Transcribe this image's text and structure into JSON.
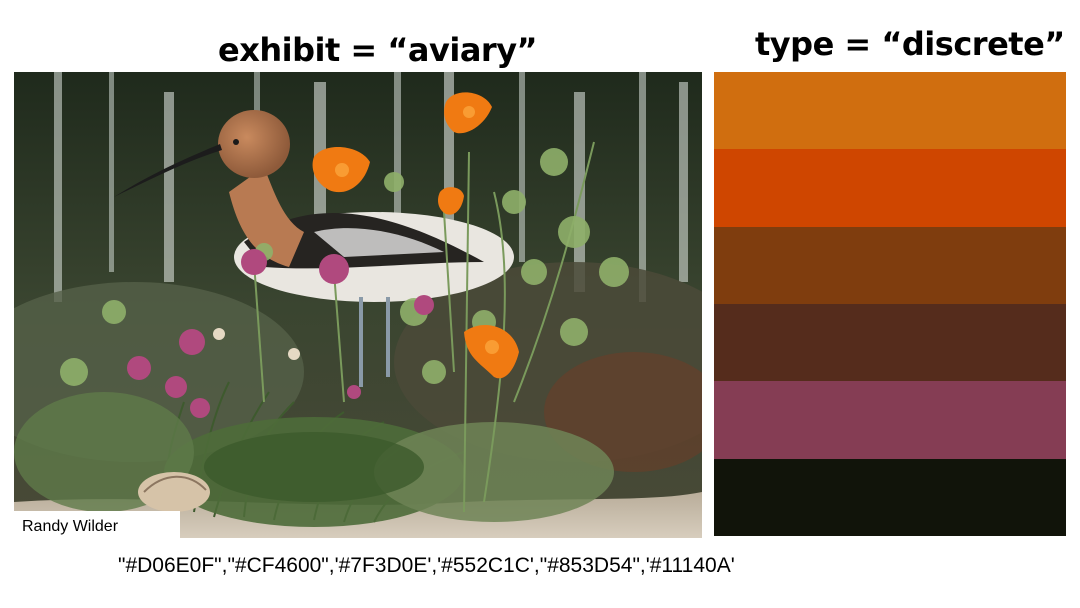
{
  "titles": {
    "left": "exhibit =  “aviary”",
    "right": "type = “discrete”"
  },
  "photo": {
    "credit": "Randy Wilder"
  },
  "palette": {
    "swatches": [
      {
        "color": "#D06E0F"
      },
      {
        "color": "#CF4600"
      },
      {
        "color": "#7F3D0E"
      },
      {
        "color": "#552C1C"
      },
      {
        "color": "#853D54"
      },
      {
        "color": "#11140A"
      }
    ]
  },
  "hex_text": "\"#D06E0F\",\"#CF4600\",'#7F3D0E','#552C1C',\"#853D54\",'#11140A'"
}
